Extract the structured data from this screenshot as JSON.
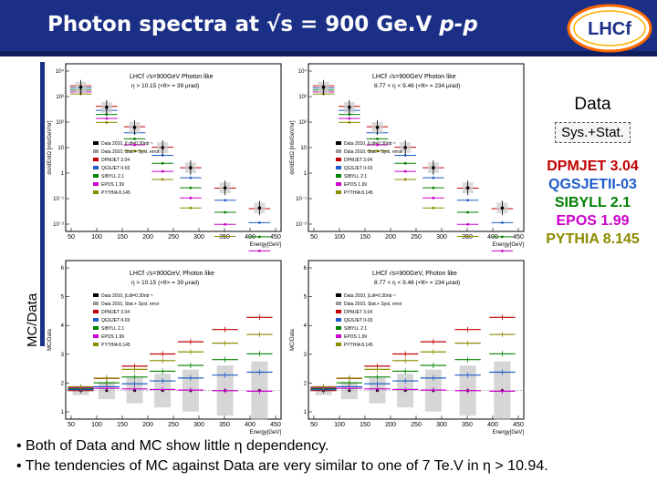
{
  "slide": {
    "title_main": "Photon spectra at √s = 900 Ge.V ",
    "title_italic": "p-p",
    "logo_text": "LHCf",
    "y_axis_label": "MC/Data"
  },
  "legend": {
    "data_label": "Data",
    "sys_label": "Sys.+Stat.",
    "models": [
      {
        "name": "DPMJET 3.04",
        "color": "#c00000"
      },
      {
        "name": "QGSJETII-03",
        "color": "#1f5cc8"
      },
      {
        "name": "SIBYLL 2.1",
        "color": "#008000"
      },
      {
        "name": "EPOS 1.99",
        "color": "#cc00cc"
      },
      {
        "name": "PYTHIA 8.145",
        "color": "#8b8b00"
      }
    ]
  },
  "bullets": [
    "• Both of Data and MC show little η dependency.",
    "• The tendencies of MC against Data are very similar to one of 7 Te.V in η > 10.94."
  ],
  "panels": {
    "top_left": {
      "header": "LHCf √s=900GeV Photon like",
      "eta": "η > 10.15 (<θ> = 39 μrad)",
      "y_title": "dσ/dE/dΩ [mb/GeV/sr]",
      "x_title": "Energy[GeV]",
      "x_ticks": [
        "50",
        "100",
        "150",
        "200",
        "250",
        "300",
        "350",
        "400",
        "450"
      ],
      "y_ticks": [
        "10⁴",
        "10³",
        "10²",
        "10",
        "1",
        "10⁻¹",
        "10⁻²"
      ],
      "legend_rows": [
        "Data 2010, ∫Ldt=0.30nb⁻¹",
        "Data 2010, Stat.+ Syst. error",
        "DPMJET 3.04",
        "QGSJET II-03",
        "SIBYLL 2.1",
        "EPOS 1.99",
        "PYTHIA 8.145"
      ]
    },
    "top_right": {
      "header": "LHCf √s=900GeV Photon like",
      "eta": "8.77 < η < 9.46 (<θ> = 234 μrad)",
      "y_title": "dσ/dE/dΩ [mb/GeV/sr]",
      "x_title": "Energy[GeV]",
      "x_ticks": [
        "50",
        "100",
        "150",
        "200",
        "250",
        "300",
        "350",
        "400",
        "450"
      ],
      "y_ticks": [
        "10⁴",
        "10³",
        "10²",
        "10",
        "1",
        "10⁻¹",
        "10⁻²"
      ],
      "legend_rows": [
        "Data 2010, ∫Ldt=0.30nb⁻¹",
        "Data 2010, Stat.+ Syst. error",
        "DPMJET 3.04",
        "QGSJET II-03",
        "SIBYLL 2.1",
        "EPOS 1.99",
        "PYTHIA 8.145"
      ]
    },
    "bottom_left": {
      "header": "LHCf √s=900GeV, Photon like",
      "eta": "η > 10.15 (<θ> = 39 μrad)",
      "y_title": "MC/Data",
      "x_title": "Energy[GeV]",
      "x_ticks": [
        "50",
        "100",
        "150",
        "200",
        "250",
        "300",
        "350",
        "400",
        "450"
      ],
      "y_ticks": [
        "6",
        "5",
        "4",
        "3",
        "2",
        "1"
      ],
      "legend_rows": [
        "Data 2010, ∫Ldt=0.30nb⁻¹",
        "Data 2010, Stat.+ Syst. error",
        "DPMJET 3.04",
        "QGSJET II-03",
        "SIBYLL 2.1",
        "EPOS 1.99",
        "PYTHIA 8.145"
      ]
    },
    "bottom_right": {
      "header": "LHCf √s=900GeV, Photon like",
      "eta": "8.77 < η < 9.46 (<θ> = 234 μrad)",
      "y_title": "MC/Data",
      "x_title": "Energy[GeV]",
      "x_ticks": [
        "50",
        "100",
        "150",
        "200",
        "250",
        "300",
        "350",
        "400",
        "450"
      ],
      "y_ticks": [
        "6",
        "5",
        "4",
        "3",
        "2",
        "1"
      ],
      "legend_rows": [
        "Data 2010, ∫Ldt=0.30nb⁻¹",
        "Data 2010, Stat.+ Syst. error",
        "DPMJET 3.04",
        "QGSJET II-03",
        "SIBYLL 2.1",
        "EPOS 1.99",
        "PYTHIA 8.145"
      ]
    }
  },
  "colors": {
    "header_bg": "#1b2f86",
    "data": "#000000",
    "band": "#aaaaaa"
  }
}
